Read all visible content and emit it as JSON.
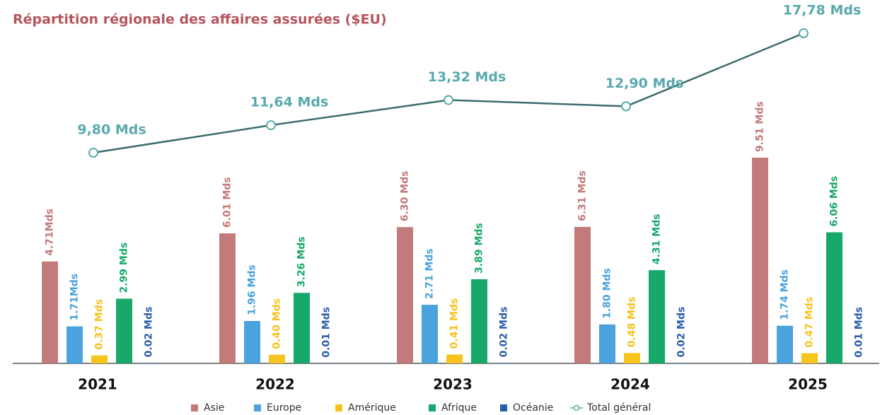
{
  "chart_data": {
    "type": "bar",
    "title": "Répartition régionale des affaires assurées ($EU)",
    "categories": [
      "2021",
      "2022",
      "2023",
      "2024",
      "2025"
    ],
    "series": [
      {
        "name": "Asie",
        "color": "#c27a7b",
        "values": [
          4.71,
          6.01,
          6.3,
          6.31,
          9.51
        ],
        "value_labels": [
          "4.71Mds",
          "6.01 Mds",
          "6.30 Mds",
          "6.31 Mds",
          "9.51 Mds"
        ]
      },
      {
        "name": "Europe",
        "color": "#4aa3dc",
        "values": [
          1.71,
          1.96,
          2.71,
          1.8,
          1.74
        ],
        "value_labels": [
          "1.71Mds",
          "1.96 Mds",
          "2.71 Mds",
          "1.80 Mds",
          "1.74 Mds"
        ]
      },
      {
        "name": "Amérique",
        "color": "#f7c31d",
        "values": [
          0.37,
          0.4,
          0.41,
          0.48,
          0.47
        ],
        "value_labels": [
          "0.37 Mds",
          "0.40 Mds",
          "0.41 Mds",
          "0.48 Mds",
          "0.47 Mds"
        ]
      },
      {
        "name": "Afrique",
        "color": "#18a96a",
        "values": [
          2.99,
          3.26,
          3.89,
          4.31,
          6.06
        ],
        "value_labels": [
          "2.99 Mds",
          "3.26 Mds",
          "3.89 Mds",
          "4.31 Mds",
          "6.06 Mds"
        ]
      },
      {
        "name": "Océanie",
        "color": "#2c5ea8",
        "values": [
          0.02,
          0.01,
          0.02,
          0.02,
          0.01
        ],
        "value_labels": [
          "0.02 Mds",
          "0.01 Mds",
          "0.02 Mds",
          "0.02 Mds",
          "0.01 Mds"
        ]
      },
      {
        "name": "Total général",
        "type": "line",
        "color": "#3d6b6e",
        "label_color": "#5aa9ad",
        "values": [
          9.8,
          11.64,
          13.32,
          12.9,
          17.78
        ],
        "value_labels": [
          "9,80 Mds",
          "11,64 Mds",
          "13,32 Mds",
          "12,90 Mds",
          "17,78 Mds"
        ]
      }
    ]
  }
}
